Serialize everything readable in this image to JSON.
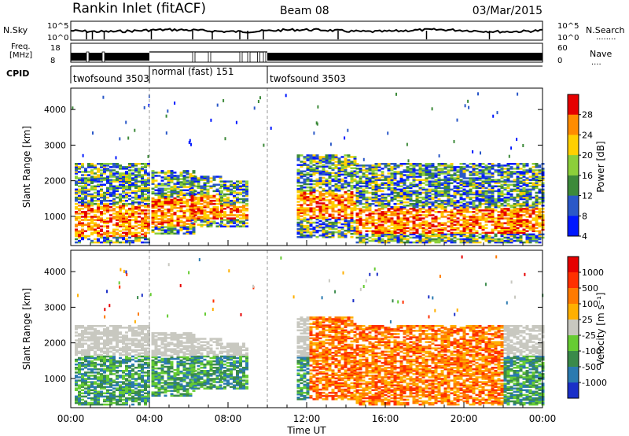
{
  "header": {
    "station": "Rankin Inlet (fitACF)",
    "beam": "Beam 08",
    "date": "03/Mar/2015"
  },
  "top_panels": {
    "nsky_label": "N.Sky",
    "nsky_ticks": [
      "10^5",
      "10^0"
    ],
    "nsearch_label": "N.Search",
    "nsearch_ticks": [
      "10^5",
      "10^0"
    ],
    "freq_label": "Freq.",
    "freq_unit": "[MHz]",
    "freq_ticks": [
      "18",
      "8"
    ],
    "nave_label": "Nave",
    "nave_ticks": [
      "60",
      "0"
    ],
    "cpid_label": "CPID",
    "cpid_segments": [
      {
        "label": "twofsound 3503",
        "start_h": 0,
        "end_h": 4
      },
      {
        "label": "normal (fast) 151",
        "start_h": 4,
        "end_h": 10
      },
      {
        "label": "twofsound 3503",
        "start_h": 10,
        "end_h": 24
      }
    ]
  },
  "chart_data": [
    {
      "type": "heatmap",
      "name": "power-panel",
      "ylabel": "Slant Range [km]",
      "xlim": [
        0,
        24
      ],
      "ylim": [
        180,
        4600
      ],
      "y_ticks": [
        1000,
        2000,
        3000,
        4000
      ],
      "colorbar_label": "Power [dB]",
      "colorbar_ticks": [
        "4",
        "8",
        "12",
        "16",
        "20",
        "24",
        "28"
      ],
      "colorbar_colors": [
        "#0018ff",
        "#2a58c8",
        "#3d8a3a",
        "#8ccf3a",
        "#ffd000",
        "#ff8c00",
        "#e60000"
      ]
    },
    {
      "type": "heatmap",
      "name": "velocity-panel",
      "ylabel": "Slant Range [km]",
      "xlabel": "Time UT",
      "xlim": [
        0,
        24
      ],
      "ylim": [
        180,
        4600
      ],
      "y_ticks": [
        1000,
        2000,
        3000,
        4000
      ],
      "x_ticks": [
        "00:00",
        "04:00",
        "08:00",
        "12:00",
        "16:00",
        "20:00",
        "00:00"
      ],
      "colorbar_label": "Velocity [m s⁻¹]",
      "colorbar_ticks": [
        "1000",
        "500",
        "100",
        "25",
        "-25",
        "-100",
        "-500",
        "-1000"
      ],
      "colorbar_colors": [
        "#1a2fc8",
        "#2a7ab0",
        "#3a8a4a",
        "#66cc33",
        "#c8c8c0",
        "#ffb000",
        "#ff7a00",
        "#ff3000",
        "#e60000"
      ]
    }
  ]
}
